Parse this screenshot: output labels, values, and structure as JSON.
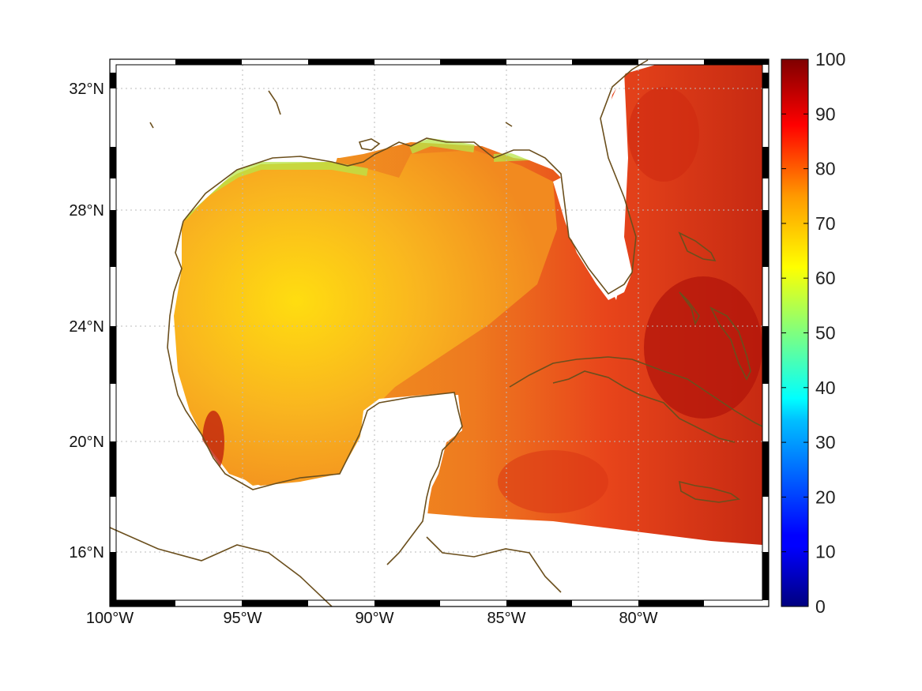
{
  "figure": {
    "lon_labels": [
      "100°W",
      "95°W",
      "90°W",
      "85°W",
      "80°W"
    ],
    "lat_labels": [
      "32°N",
      "28°N",
      "24°N",
      "20°N",
      "16°N"
    ],
    "colorbar": {
      "min": 0,
      "max": 100,
      "ticks": [
        "0",
        "10",
        "20",
        "30",
        "40",
        "50",
        "60",
        "70",
        "80",
        "90",
        "100"
      ],
      "colormap": "jet"
    },
    "colors": {
      "coastline": "#6b4f1d",
      "grid": "#bbbbbb",
      "ocean_west_gulf": "#f7b81e",
      "ocean_east": "#e8431a",
      "ocean_max": "#b3120a",
      "near_coast": "#b8e64a"
    }
  }
}
